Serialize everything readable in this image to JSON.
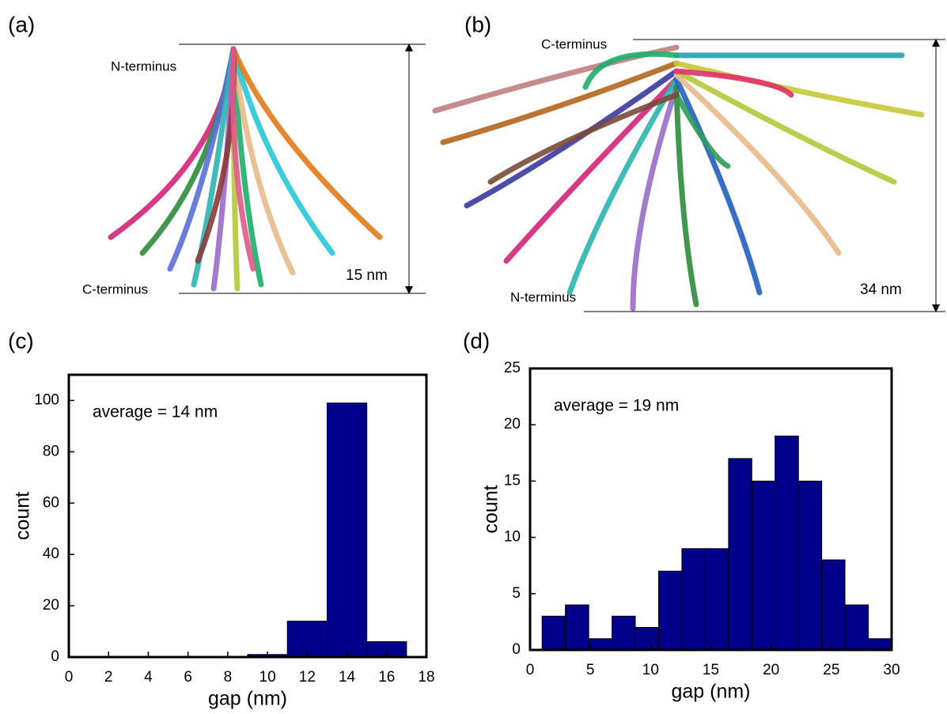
{
  "panels": [
    {
      "label": "(a)",
      "top_label": "N-terminus",
      "bottom_label": "C-terminus",
      "size": "15 nm"
    },
    {
      "label": "(b)",
      "top_label": "C-terminus",
      "bottom_label": "N-terminus",
      "size": "34 nm"
    }
  ],
  "chart_data": [
    {
      "type": "histogram",
      "panel_label": "(c)",
      "annotation": "average = 14 nm",
      "x_label": "gap (nm)",
      "y_label": "count",
      "color": "#00008b",
      "bins": [
        9,
        11,
        13,
        15,
        17
      ],
      "counts": [
        1,
        14,
        99,
        6
      ],
      "xlim": [
        0,
        18
      ],
      "ylim": [
        0,
        110
      ],
      "xticks": [
        0,
        2,
        4,
        6,
        8,
        10,
        12,
        14,
        16,
        18
      ],
      "yticks": [
        0,
        20,
        40,
        60,
        80,
        100
      ]
    },
    {
      "type": "histogram",
      "panel_label": "(d)",
      "annotation": "average = 19 nm",
      "x_label": "gap (nm)",
      "y_label": "count",
      "color": "#00008b",
      "bins": [
        1,
        2.93,
        4.87,
        6.8,
        8.73,
        10.67,
        12.6,
        14.53,
        16.47,
        18.4,
        20.33,
        22.27,
        24.2,
        26.13,
        28.07,
        30
      ],
      "counts": [
        3,
        4,
        1,
        3,
        2,
        7,
        9,
        9,
        17,
        15,
        19,
        15,
        8,
        4,
        1
      ],
      "xlim": [
        0,
        30
      ],
      "ylim": [
        0,
        25
      ],
      "xticks": [
        0,
        5,
        10,
        15,
        20,
        25,
        30
      ],
      "yticks": [
        0,
        5,
        10,
        15,
        20,
        25
      ]
    }
  ]
}
